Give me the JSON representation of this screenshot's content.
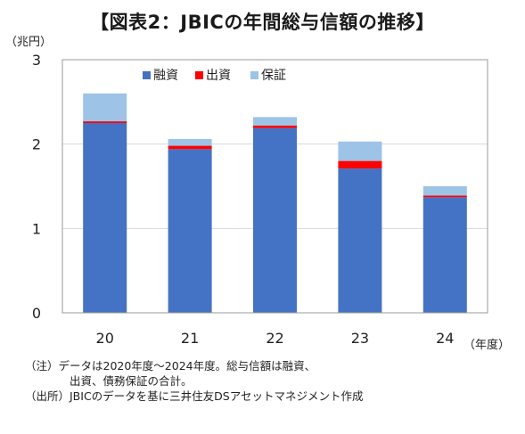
{
  "title": "【図表2：JBICの年間総与信額の推移】",
  "y_unit": "（兆円）",
  "x_unit": "（年度）",
  "colors": {
    "loan": "#4472c4",
    "investment": "#ff0000",
    "guarantee": "#9dc3e6",
    "axis": "#999999",
    "grid": "#d9d9d9"
  },
  "chart_data": {
    "type": "bar",
    "stacked": true,
    "categories": [
      "20",
      "21",
      "22",
      "23",
      "24"
    ],
    "series": [
      {
        "name": "融資",
        "color": "#4472c4",
        "values": [
          2.25,
          1.94,
          2.19,
          1.71,
          1.37
        ]
      },
      {
        "name": "出資",
        "color": "#ff0000",
        "values": [
          0.02,
          0.04,
          0.03,
          0.09,
          0.02
        ]
      },
      {
        "name": "保証",
        "color": "#9dc3e6",
        "values": [
          0.33,
          0.08,
          0.1,
          0.23,
          0.11
        ]
      }
    ],
    "ylim": [
      0,
      3
    ],
    "yticks": [
      "0",
      "1",
      "2",
      "3"
    ],
    "grid": true,
    "legend_position": "top-center"
  },
  "notes": [
    "（注）データは2020年度～2024年度。総与信額は融資、",
    "出資、債務保証の合計。",
    "（出所）JBICのデータを基に三井住友DSアセットマネジメント作成"
  ]
}
